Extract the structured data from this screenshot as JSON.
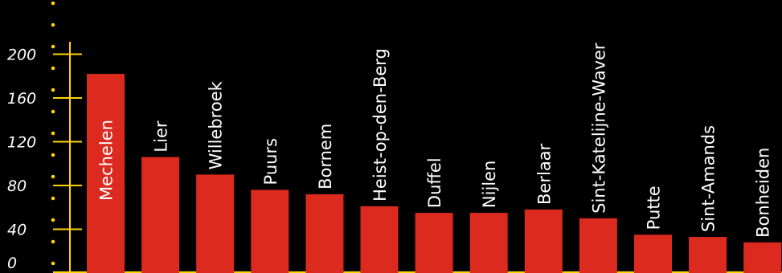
{
  "chart_data": {
    "type": "bar",
    "categories": [
      "Mechelen",
      "Lier",
      "Willebroek",
      "Puurs",
      "Bornem",
      "Heist-op-den-Berg",
      "Duffel",
      "Nijlen",
      "Berlaar",
      "Sint-Katelijne-Waver",
      "Putte",
      "Sint-Amands",
      "Bonheiden"
    ],
    "values": [
      182,
      106,
      90,
      76,
      72,
      61,
      55,
      55,
      58,
      50,
      35,
      33,
      28
    ],
    "yticks": [
      0,
      40,
      80,
      120,
      160,
      200
    ],
    "ytick_labels": [
      "0",
      "40",
      "80",
      "120",
      "160",
      "200"
    ],
    "ylim": [
      0,
      200
    ],
    "grid": false,
    "legend": "none",
    "colors": {
      "background": "#000000",
      "bar": "#dc2a1e",
      "axis": "#ffd400",
      "text": "#ffffff"
    }
  }
}
